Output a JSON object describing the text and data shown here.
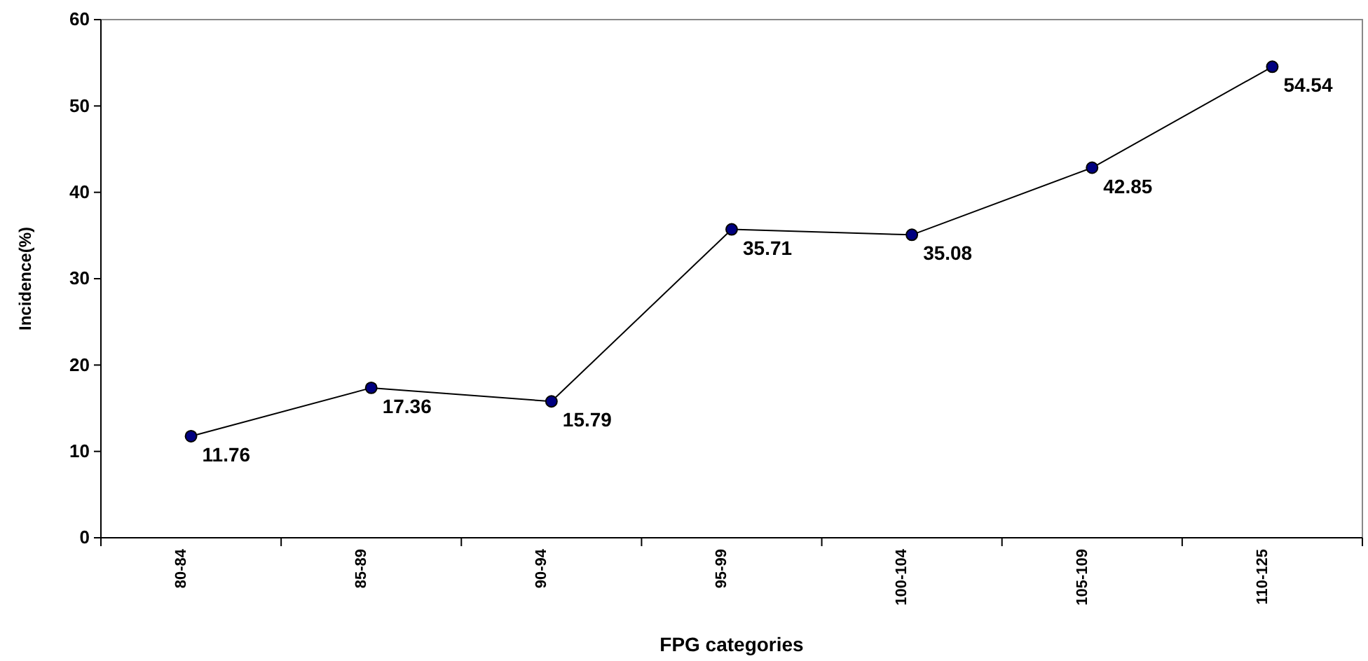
{
  "chart_data": {
    "type": "line",
    "xlabel": "FPG categories",
    "ylabel": "Incidence(%)",
    "categories": [
      "80-84",
      "85-89",
      "90-94",
      "95-99",
      "100-104",
      "105-109",
      "110-125"
    ],
    "series": [
      {
        "color": "#000080",
        "values": [
          11.76,
          17.36,
          15.79,
          35.71,
          35.08,
          42.85,
          54.54
        ]
      }
    ],
    "ylim": [
      0,
      60
    ],
    "yticks": [
      0,
      10,
      20,
      30,
      40,
      50,
      60
    ],
    "grid": false,
    "marker": "circle",
    "line_style": "solid",
    "data_labels": true
  }
}
